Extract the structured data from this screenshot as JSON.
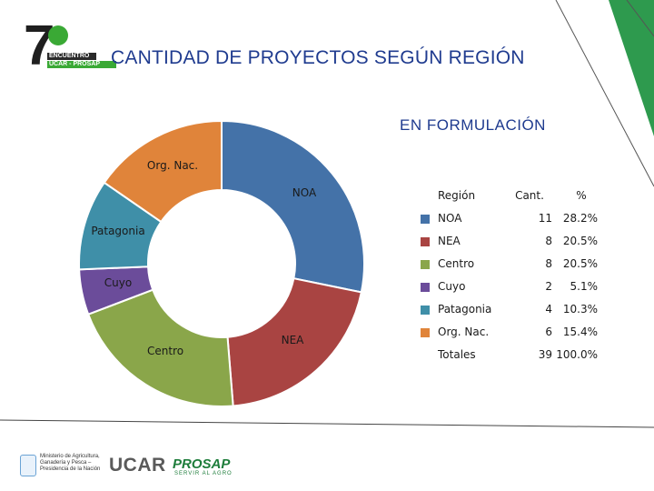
{
  "header": {
    "title": "CANTIDAD DE PROYECTOS SEGÚN REGIÓN",
    "subtitle": "EN FORMULACIÓN"
  },
  "logo": {
    "number": "7",
    "line1": "ENCUENTRO",
    "line2": "UCAR - PROSAP"
  },
  "chart_data": {
    "type": "pie",
    "variant": "donut",
    "title": "EN FORMULACIÓN",
    "categories": [
      "NOA",
      "NEA",
      "Centro",
      "Cuyo",
      "Patagonia",
      "Org. Nac."
    ],
    "values": [
      11,
      8,
      8,
      2,
      4,
      6
    ],
    "percentages": [
      "28.2%",
      "20.5%",
      "20.5%",
      "5.1%",
      "10.3%",
      "15.4%"
    ],
    "colors": [
      "#4472a8",
      "#a94442",
      "#8aa64a",
      "#6b4c9a",
      "#3f8fa8",
      "#e0843a"
    ],
    "legend_placement": "right"
  },
  "table": {
    "headers": {
      "region": "Región",
      "cant": "Cant.",
      "pct": "%"
    },
    "rows": [
      {
        "name": "NOA",
        "cant": "11",
        "pct": "28.2%",
        "color": "#4472a8"
      },
      {
        "name": "NEA",
        "cant": "8",
        "pct": "20.5%",
        "color": "#a94442"
      },
      {
        "name": "Centro",
        "cant": "8",
        "pct": "20.5%",
        "color": "#8aa64a"
      },
      {
        "name": "Cuyo",
        "cant": "2",
        "pct": "5.1%",
        "color": "#6b4c9a"
      },
      {
        "name": "Patagonia",
        "cant": "4",
        "pct": "10.3%",
        "color": "#3f8fa8"
      },
      {
        "name": "Org. Nac.",
        "cant": "6",
        "pct": "15.4%",
        "color": "#e0843a"
      }
    ],
    "total": {
      "name": "Totales",
      "cant": "39",
      "pct": "100.0%"
    }
  },
  "footer": {
    "ministry": "Ministerio de Agricultura, Ganadería y Pesca – Presidencia de la Nación",
    "ucar": "UCAR",
    "prosap": "PROSAP",
    "prosap_sub": "SERVIR AL AGRO"
  }
}
